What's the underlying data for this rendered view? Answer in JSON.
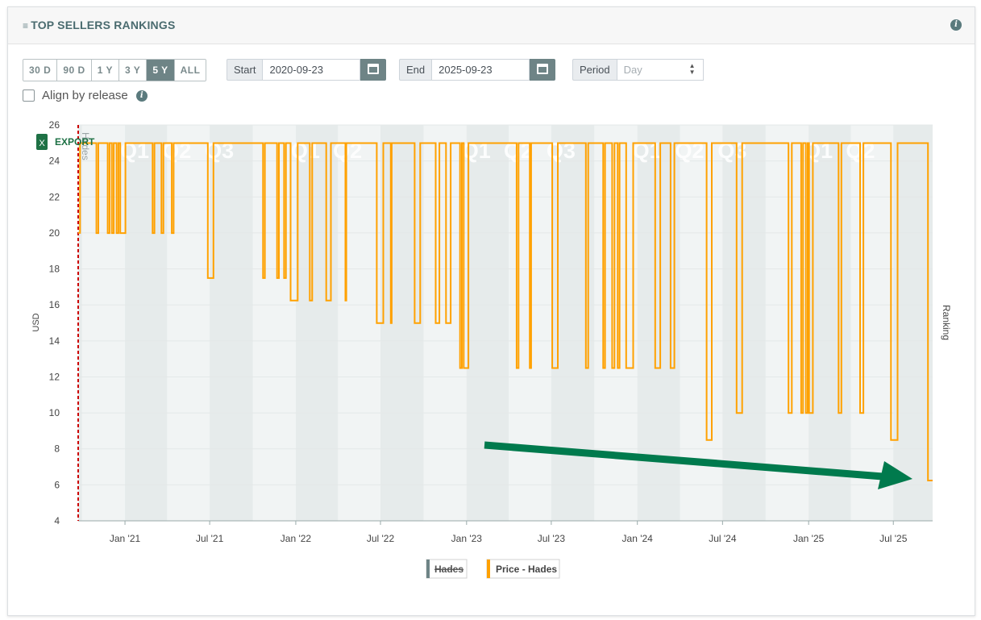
{
  "header": {
    "title": "TOP SELLERS RANKINGS",
    "list_icon": "list-icon",
    "info_icon": "info-icon"
  },
  "controls": {
    "ranges": [
      "30 D",
      "90 D",
      "1 Y",
      "3 Y",
      "5 Y",
      "ALL"
    ],
    "active_range": "5 Y",
    "start_label": "Start",
    "start_value": "2020-09-23",
    "end_label": "End",
    "end_value": "2025-09-23",
    "period_label": "Period",
    "period_value": "Day",
    "align_label": "Align by release"
  },
  "export_label": "EXPORT",
  "release_marker_label": "Hades",
  "colors": {
    "price_line": "#ffa100",
    "release_marker": "#cc0000",
    "arrow": "#007a4d",
    "band": "#e6ebeb",
    "plot_bg": "#f1f4f4",
    "quarter_text": "#ffffff",
    "hades_legend": "#6e8486"
  },
  "chart_data": {
    "type": "line",
    "title": "",
    "ylabel": "USD",
    "y2label": "Ranking",
    "ylim": [
      4,
      26
    ],
    "yticks": [
      4,
      6,
      8,
      10,
      12,
      14,
      16,
      18,
      20,
      22,
      24,
      26
    ],
    "xlim": [
      "2020-09-23",
      "2025-09-23"
    ],
    "xticks": [
      {
        "date": "2021-01-01",
        "label": "Jan '21"
      },
      {
        "date": "2021-07-01",
        "label": "Jul '21"
      },
      {
        "date": "2022-01-01",
        "label": "Jan '22"
      },
      {
        "date": "2022-07-01",
        "label": "Jul '22"
      },
      {
        "date": "2023-01-01",
        "label": "Jan '23"
      },
      {
        "date": "2023-07-01",
        "label": "Jul '23"
      },
      {
        "date": "2024-01-01",
        "label": "Jan '24"
      },
      {
        "date": "2024-07-01",
        "label": "Jul '24"
      },
      {
        "date": "2025-01-01",
        "label": "Jan '25"
      },
      {
        "date": "2025-07-01",
        "label": "Jul '25"
      }
    ],
    "quarter_labels": [
      {
        "label": "Q1",
        "date": "2021-01-01"
      },
      {
        "label": "Q2",
        "date": "2021-04-01"
      },
      {
        "label": "Q3",
        "date": "2021-07-01"
      },
      {
        "label": "Q1",
        "date": "2022-01-01"
      },
      {
        "label": "Q2",
        "date": "2022-04-01"
      },
      {
        "label": "Q1",
        "date": "2023-01-01"
      },
      {
        "label": "Q2",
        "date": "2023-04-01"
      },
      {
        "label": "Q3",
        "date": "2023-07-01"
      },
      {
        "label": "Q1",
        "date": "2024-01-01"
      },
      {
        "label": "Q2",
        "date": "2024-04-01"
      },
      {
        "label": "Q3",
        "date": "2024-07-01"
      },
      {
        "label": "Q1",
        "date": "2025-01-01"
      },
      {
        "label": "Q2",
        "date": "2025-04-01"
      }
    ],
    "legend": [
      {
        "name": "Hades",
        "hidden": true
      },
      {
        "name": "Price - Hades",
        "hidden": false
      }
    ],
    "series": [
      {
        "name": "Price - Hades",
        "step": true,
        "points": [
          [
            "2020-09-23",
            20.0
          ],
          [
            "2020-09-27",
            24.99
          ],
          [
            "2020-11-01",
            19.99
          ],
          [
            "2020-11-05",
            24.99
          ],
          [
            "2020-11-25",
            19.99
          ],
          [
            "2020-11-29",
            24.99
          ],
          [
            "2020-12-04",
            19.99
          ],
          [
            "2020-12-08",
            24.99
          ],
          [
            "2020-12-14",
            19.99
          ],
          [
            "2020-12-18",
            24.99
          ],
          [
            "2020-12-22",
            19.99
          ],
          [
            "2021-01-02",
            24.99
          ],
          [
            "2021-03-01",
            19.99
          ],
          [
            "2021-03-05",
            24.99
          ],
          [
            "2021-03-20",
            19.99
          ],
          [
            "2021-03-24",
            24.99
          ],
          [
            "2021-04-11",
            19.99
          ],
          [
            "2021-04-15",
            24.99
          ],
          [
            "2021-06-27",
            17.49
          ],
          [
            "2021-07-09",
            24.99
          ],
          [
            "2021-10-23",
            17.49
          ],
          [
            "2021-10-27",
            24.99
          ],
          [
            "2021-11-22",
            17.49
          ],
          [
            "2021-11-26",
            24.99
          ],
          [
            "2021-12-07",
            17.49
          ],
          [
            "2021-12-11",
            24.99
          ],
          [
            "2021-12-21",
            16.24
          ],
          [
            "2022-01-05",
            24.99
          ],
          [
            "2022-01-31",
            16.24
          ],
          [
            "2022-02-05",
            24.99
          ],
          [
            "2022-03-07",
            16.24
          ],
          [
            "2022-03-17",
            24.99
          ],
          [
            "2022-04-17",
            16.24
          ],
          [
            "2022-04-19",
            24.99
          ],
          [
            "2022-06-23",
            14.99
          ],
          [
            "2022-07-07",
            24.99
          ],
          [
            "2022-07-23",
            14.99
          ],
          [
            "2022-07-25",
            24.99
          ],
          [
            "2022-09-12",
            14.99
          ],
          [
            "2022-09-24",
            24.99
          ],
          [
            "2022-10-27",
            14.99
          ],
          [
            "2022-11-04",
            24.99
          ],
          [
            "2022-11-18",
            14.99
          ],
          [
            "2022-11-28",
            24.99
          ],
          [
            "2022-12-18",
            12.49
          ],
          [
            "2022-12-22",
            24.99
          ],
          [
            "2022-12-26",
            12.49
          ],
          [
            "2023-01-05",
            24.99
          ],
          [
            "2023-04-18",
            12.49
          ],
          [
            "2023-04-22",
            24.99
          ],
          [
            "2023-05-16",
            12.49
          ],
          [
            "2023-05-19",
            24.99
          ],
          [
            "2023-07-03",
            12.49
          ],
          [
            "2023-07-15",
            24.99
          ],
          [
            "2023-09-13",
            12.49
          ],
          [
            "2023-09-18",
            24.99
          ],
          [
            "2023-10-20",
            12.49
          ],
          [
            "2023-10-24",
            24.99
          ],
          [
            "2023-11-08",
            12.49
          ],
          [
            "2023-11-13",
            24.99
          ],
          [
            "2023-11-20",
            12.49
          ],
          [
            "2023-11-24",
            24.99
          ],
          [
            "2023-12-08",
            12.49
          ],
          [
            "2023-12-23",
            24.99
          ],
          [
            "2024-02-08",
            12.49
          ],
          [
            "2024-02-19",
            24.99
          ],
          [
            "2024-03-12",
            12.49
          ],
          [
            "2024-03-20",
            24.99
          ],
          [
            "2024-05-28",
            8.49
          ],
          [
            "2024-06-08",
            24.99
          ],
          [
            "2024-07-31",
            9.99
          ],
          [
            "2024-08-12",
            24.99
          ],
          [
            "2024-11-19",
            9.99
          ],
          [
            "2024-11-26",
            24.99
          ],
          [
            "2024-12-16",
            9.99
          ],
          [
            "2024-12-20",
            24.99
          ],
          [
            "2024-12-26",
            9.99
          ],
          [
            "2024-12-30",
            24.99
          ],
          [
            "2025-01-02",
            9.99
          ],
          [
            "2025-01-10",
            24.99
          ],
          [
            "2025-03-06",
            9.99
          ],
          [
            "2025-03-12",
            24.99
          ],
          [
            "2025-04-21",
            9.99
          ],
          [
            "2025-04-28",
            24.99
          ],
          [
            "2025-06-26",
            8.49
          ],
          [
            "2025-07-10",
            24.99
          ],
          [
            "2025-09-13",
            6.24
          ],
          [
            "2025-09-23",
            6.24
          ]
        ]
      }
    ]
  }
}
